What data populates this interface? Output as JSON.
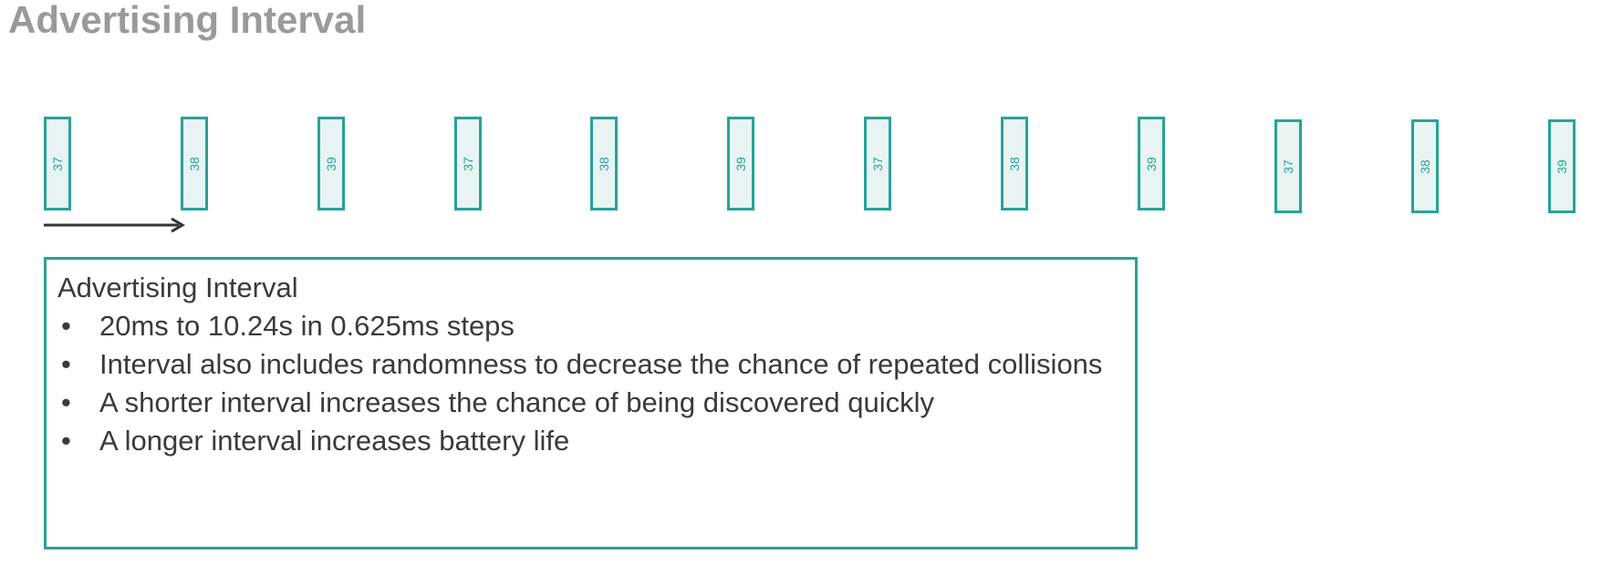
{
  "title": "Advertising Interval",
  "packets": [
    {
      "channel": "37"
    },
    {
      "channel": "38"
    },
    {
      "channel": "39"
    },
    {
      "channel": "37"
    },
    {
      "channel": "38"
    },
    {
      "channel": "39"
    },
    {
      "channel": "37"
    },
    {
      "channel": "38"
    },
    {
      "channel": "39"
    },
    {
      "channel": "37"
    },
    {
      "channel": "38"
    },
    {
      "channel": "39"
    }
  ],
  "info_box": {
    "heading": "Advertising Interval",
    "bullet_glyph": "•",
    "items": [
      "20ms to 10.24s in 0.625ms steps",
      "Interval also includes randomness to decrease the chance of repeated collisions",
      "A shorter interval increases the chance of being discovered quickly",
      "A longer interval increases battery life"
    ]
  },
  "colors": {
    "accent": "#26a398",
    "packet_fill": "#e8f4f3",
    "title": "#9a9a9a",
    "text": "#3a3a3a",
    "arrow": "#333333"
  }
}
